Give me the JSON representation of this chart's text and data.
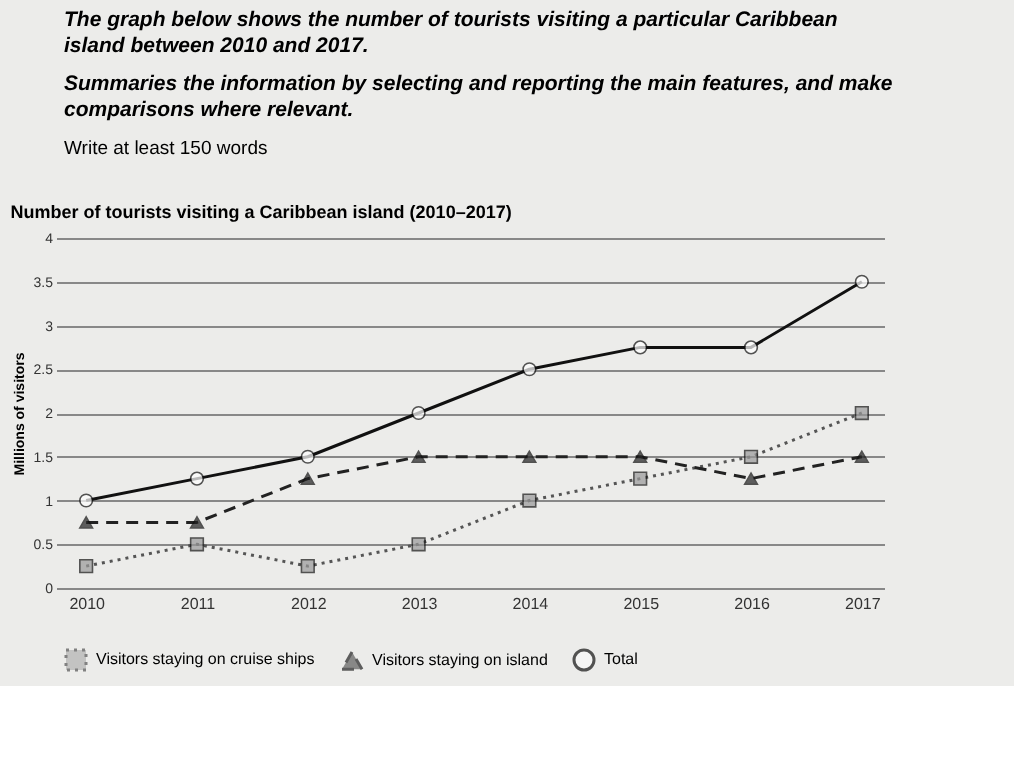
{
  "chart_data": {
    "type": "line",
    "title": "Number of tourists visiting a Caribbean island (2010–2017)",
    "ylabel": "Millions of visitors",
    "annotations": [
      "The graph below shows the number of tourists visiting a particular Caribbean island between 2010 and 2017.",
      "Summaries the information by selecting and reporting the main features, and make comparisons where relevant.",
      "Write at least 150 words"
    ],
    "categories": [
      "2010",
      "2011",
      "2012",
      "2013",
      "2014",
      "2015",
      "2016",
      "2017"
    ],
    "series": [
      {
        "name": "Visitors staying on cruise ships",
        "color": "#555555",
        "marker": "square",
        "line_style": "dotted",
        "values": [
          0.25,
          0.5,
          0.25,
          0.5,
          1,
          1.25,
          1.5,
          2
        ]
      },
      {
        "name": "Visitors staying on island",
        "color": "#222222",
        "marker": "triangle",
        "line_style": "dashed",
        "values": [
          0.75,
          0.75,
          1.25,
          1.5,
          1.5,
          1.5,
          1.25,
          1.5
        ]
      },
      {
        "name": "Total",
        "color": "#111111",
        "marker": "circle",
        "line_style": "solid",
        "values": [
          1,
          1.25,
          1.5,
          2,
          2.5,
          2.75,
          2.75,
          3.5
        ]
      }
    ],
    "ylim": [
      0,
      4
    ],
    "yticks": [
      0,
      0.5,
      1,
      1.5,
      2,
      2.5,
      3,
      3.5,
      4
    ],
    "grid": "y",
    "legend": "bottom"
  }
}
